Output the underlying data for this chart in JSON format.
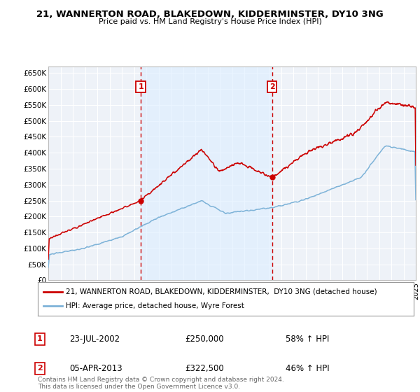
{
  "title": "21, WANNERTON ROAD, BLAKEDOWN, KIDDERMINSTER, DY10 3NG",
  "subtitle": "Price paid vs. HM Land Registry's House Price Index (HPI)",
  "ylim": [
    0,
    670000
  ],
  "yticks": [
    0,
    50000,
    100000,
    150000,
    200000,
    250000,
    300000,
    350000,
    400000,
    450000,
    500000,
    550000,
    600000,
    650000
  ],
  "ytick_labels": [
    "£0",
    "£50K",
    "£100K",
    "£150K",
    "£200K",
    "£250K",
    "£300K",
    "£350K",
    "£400K",
    "£450K",
    "£500K",
    "£550K",
    "£600K",
    "£650K"
  ],
  "sale1_date": 2002.55,
  "sale1_price": 250000,
  "sale2_date": 2013.27,
  "sale2_price": 322500,
  "sale1_info": "23-JUL-2002",
  "sale1_price_str": "£250,000",
  "sale1_hpi": "58% ↑ HPI",
  "sale2_info": "05-APR-2013",
  "sale2_price_str": "£322,500",
  "sale2_hpi": "46% ↑ HPI",
  "legend_line1": "21, WANNERTON ROAD, BLAKEDOWN, KIDDERMINSTER,  DY10 3NG (detached house)",
  "legend_line2": "HPI: Average price, detached house, Wyre Forest",
  "footer": "Contains HM Land Registry data © Crown copyright and database right 2024.\nThis data is licensed under the Open Government Licence v3.0.",
  "line_color_red": "#cc0000",
  "line_color_blue": "#7eb3d8",
  "shade_color": "#ddeeff",
  "bg_color": "#eef2f8",
  "grid_color": "#ffffff",
  "xmin": 1995,
  "xmax": 2025
}
